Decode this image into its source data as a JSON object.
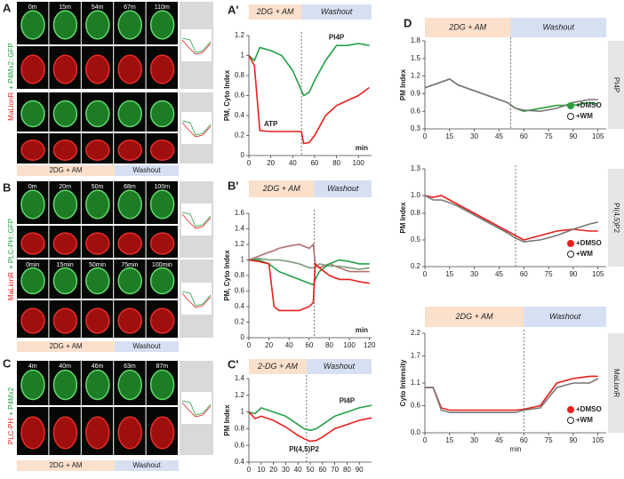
{
  "image_panels": [
    {
      "label": "A",
      "probe": [
        "MaLionR",
        "+ P4Mx2::GFP"
      ],
      "times": [
        [
          "0m",
          "15m",
          "54m",
          "67m",
          "110m"
        ]
      ],
      "conditions": [
        "2DG + AM",
        "Washout"
      ]
    },
    {
      "label": "B",
      "probe": [
        "MaLionR",
        "+ PLC-PH::GFP"
      ],
      "times": [
        [
          "0m",
          "20m",
          "50m",
          "68m",
          "100m"
        ],
        [
          "0min",
          "15min",
          "50min",
          "75min",
          "100min"
        ]
      ],
      "conditions": [
        "2DG + AM",
        "Washout"
      ]
    },
    {
      "label": "C",
      "probe": [
        "PLC-PH",
        "+ P4Mx2"
      ],
      "times": [
        [
          "4m",
          "40m",
          "46m",
          "63m",
          "87m"
        ]
      ],
      "conditions": [
        "2DG + AM",
        "Washout"
      ]
    }
  ],
  "chart_data": [
    {
      "panel_label": "A'",
      "type": "line",
      "header": [
        "2DG + AM",
        "Washout"
      ],
      "washout_start": 48,
      "ylabel": "PM, Cyto Index",
      "xlabel": "min",
      "xlim": [
        0,
        112
      ],
      "xticks": [
        0,
        20,
        40,
        60,
        80,
        100
      ],
      "ylim": [
        0,
        1.2
      ],
      "yticks": [
        0,
        0.2,
        0.4,
        0.6,
        0.8,
        1,
        1.2
      ],
      "x": [
        0,
        5,
        10,
        20,
        30,
        40,
        48,
        50,
        55,
        60,
        70,
        80,
        90,
        100,
        110
      ],
      "series": [
        {
          "name": "PI4P",
          "color": "#22a045",
          "values": [
            1.0,
            0.95,
            1.08,
            1.05,
            1.0,
            0.85,
            0.65,
            0.6,
            0.63,
            0.75,
            0.95,
            1.1,
            1.1,
            1.12,
            1.1
          ]
        },
        {
          "name": "ATP",
          "color": "#e8201c",
          "values": [
            1.0,
            0.9,
            0.25,
            0.24,
            0.24,
            0.24,
            0.24,
            0.12,
            0.13,
            0.2,
            0.4,
            0.5,
            0.55,
            0.6,
            0.68
          ]
        }
      ]
    },
    {
      "panel_label": "B'",
      "type": "line",
      "header": [
        "2DG + AM",
        "Washout"
      ],
      "washout_start": 65,
      "ylabel": "PM, Cyto Index",
      "xlabel": "min",
      "xlim": [
        0,
        122
      ],
      "xticks": [
        0,
        20,
        40,
        60,
        80,
        100,
        120
      ],
      "ylim": [
        0,
        1.6
      ],
      "yticks": [
        0,
        0.2,
        0.4,
        0.6,
        0.8,
        1,
        1.2,
        1.4,
        1.6
      ],
      "x": [
        0,
        10,
        20,
        25,
        30,
        40,
        50,
        60,
        64,
        66,
        70,
        80,
        90,
        100,
        110,
        120
      ],
      "series": [
        {
          "color": "#b07070",
          "values": [
            1.0,
            1.05,
            1.1,
            1.12,
            1.15,
            1.18,
            1.2,
            1.15,
            1.2,
            0.95,
            0.9,
            0.95,
            0.9,
            0.85,
            0.85,
            0.85
          ]
        },
        {
          "color": "#7a9a7a",
          "values": [
            1.0,
            1.02,
            1.0,
            1.0,
            1.0,
            0.98,
            0.95,
            0.9,
            0.9,
            0.9,
            0.95,
            0.92,
            0.92,
            0.9,
            0.88,
            0.9
          ]
        },
        {
          "color": "#22a045",
          "values": [
            1.0,
            1.0,
            0.95,
            0.9,
            0.85,
            0.8,
            0.75,
            0.7,
            0.68,
            0.75,
            0.85,
            0.95,
            1.0,
            0.98,
            0.95,
            0.95
          ]
        },
        {
          "color": "#e8201c",
          "values": [
            1.0,
            0.98,
            0.95,
            0.4,
            0.35,
            0.35,
            0.35,
            0.4,
            0.45,
            0.95,
            0.9,
            0.8,
            0.75,
            0.75,
            0.72,
            0.7
          ]
        }
      ]
    },
    {
      "panel_label": "C'",
      "type": "line",
      "header": [
        "2-DG + AM",
        "Washout"
      ],
      "washout_start": 47,
      "ylabel": "PM  Index",
      "xlim": [
        0,
        100
      ],
      "xticks": [
        0,
        10,
        20,
        30,
        40,
        50,
        60,
        70,
        80,
        90
      ],
      "ylim": [
        0.4,
        1.4
      ],
      "yticks": [
        0.4,
        0.6,
        0.8,
        1,
        1.2,
        1.4
      ],
      "x": [
        0,
        5,
        10,
        20,
        30,
        40,
        45,
        50,
        55,
        60,
        70,
        80,
        90,
        100
      ],
      "series": [
        {
          "name": "PI4P",
          "color": "#22a045",
          "values": [
            1.0,
            0.98,
            1.05,
            1.0,
            0.95,
            0.85,
            0.8,
            0.78,
            0.8,
            0.85,
            0.95,
            1.0,
            1.05,
            1.08
          ]
        },
        {
          "name": "PI(4,5)P2",
          "color": "#e8201c",
          "values": [
            1.0,
            0.92,
            0.95,
            0.9,
            0.82,
            0.72,
            0.68,
            0.65,
            0.66,
            0.7,
            0.8,
            0.85,
            0.9,
            0.93
          ]
        }
      ]
    },
    {
      "panel_label": "D",
      "type": "line",
      "header": [
        "2DG + AM",
        "Washout"
      ],
      "washout_start": 52,
      "ylabel": "PM Index",
      "side_label": "PI4P",
      "legend": "lower right",
      "xlim": [
        0,
        110
      ],
      "xticks": [
        0,
        15,
        30,
        45,
        60,
        75,
        90,
        105
      ],
      "ylim": [
        0.3,
        1.8
      ],
      "yticks": [
        0.3,
        0.6,
        0.9,
        1.2,
        1.5,
        1.8
      ],
      "x": [
        0,
        5,
        10,
        15,
        20,
        30,
        40,
        50,
        55,
        60,
        70,
        80,
        90,
        100,
        105
      ],
      "series": [
        {
          "name": "+DMSO",
          "color": "#2a9d3a",
          "values": [
            1.0,
            1.05,
            1.1,
            1.15,
            1.05,
            0.95,
            0.85,
            0.75,
            0.65,
            0.6,
            0.65,
            0.7,
            0.7,
            0.75,
            0.72
          ]
        },
        {
          "name": "+WM",
          "color": "#777777",
          "values": [
            1.0,
            1.05,
            1.1,
            1.15,
            1.05,
            0.95,
            0.85,
            0.75,
            0.65,
            0.62,
            0.6,
            0.65,
            0.75,
            0.8,
            0.8
          ]
        }
      ]
    },
    {
      "type": "line",
      "washout_start": 55,
      "ylabel": "PM Index",
      "side_label": "PI(4,5)P2",
      "legend": "lower right",
      "xlim": [
        0,
        110
      ],
      "xticks": [
        0,
        15,
        30,
        45,
        60,
        75,
        90,
        105
      ],
      "ylim": [
        0.2,
        1.3
      ],
      "yticks": [
        0.2,
        0.5,
        0.8,
        {
          "value": 1,
          "label": "1.0"
        },
        1.3
      ],
      "x": [
        0,
        5,
        10,
        15,
        20,
        30,
        40,
        50,
        55,
        60,
        70,
        80,
        90,
        100,
        105
      ],
      "series": [
        {
          "name": "+DMSO",
          "color": "#e8201c",
          "values": [
            1.0,
            0.98,
            1.0,
            0.95,
            0.9,
            0.8,
            0.7,
            0.6,
            0.55,
            0.5,
            0.55,
            0.6,
            0.62,
            0.6,
            0.6
          ]
        },
        {
          "name": "+WM",
          "color": "#777777",
          "values": [
            1.0,
            0.95,
            0.95,
            0.92,
            0.88,
            0.78,
            0.68,
            0.58,
            0.52,
            0.48,
            0.5,
            0.55,
            0.62,
            0.68,
            0.7
          ]
        }
      ]
    },
    {
      "type": "line",
      "header": [
        "2DG + AM",
        "Washout"
      ],
      "washout_start": 60,
      "ylabel": "Cyto Intensity",
      "xlabel": "min",
      "side_label": "MaLionR",
      "legend": "lower right",
      "xlim": [
        0,
        110
      ],
      "xticks": [
        0,
        15,
        30,
        45,
        60,
        75,
        90,
        105
      ],
      "ylim": [
        0,
        2.2
      ],
      "yticks": [
        {
          "value": 0,
          "label": "0.0"
        },
        0.6,
        1.1,
        1.7,
        2.2
      ],
      "x": [
        0,
        5,
        10,
        15,
        20,
        30,
        40,
        50,
        55,
        60,
        70,
        80,
        90,
        100,
        105
      ],
      "series": [
        {
          "name": "+DMSO",
          "color": "#e8201c",
          "values": [
            1.0,
            1.0,
            0.55,
            0.5,
            0.5,
            0.5,
            0.5,
            0.5,
            0.5,
            0.52,
            0.6,
            1.1,
            1.2,
            1.25,
            1.25
          ]
        },
        {
          "name": "+WM",
          "color": "#777777",
          "values": [
            1.0,
            1.0,
            0.5,
            0.45,
            0.45,
            0.45,
            0.45,
            0.45,
            0.45,
            0.5,
            0.55,
            1.0,
            1.1,
            1.1,
            1.2
          ]
        }
      ]
    }
  ]
}
